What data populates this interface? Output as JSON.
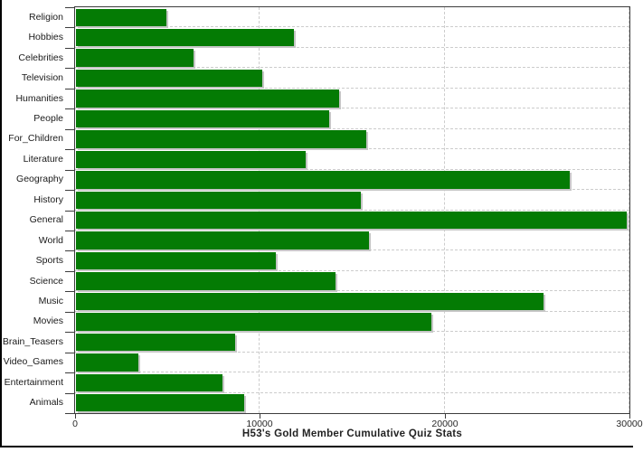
{
  "chart_data": {
    "type": "bar",
    "orientation": "horizontal",
    "title": "H53's Gold Member Cumulative Quiz Stats",
    "categories": [
      "Religion",
      "Hobbies",
      "Celebrities",
      "Television",
      "Humanities",
      "People",
      "For_Children",
      "Literature",
      "Geography",
      "History",
      "General",
      "World",
      "Sports",
      "Science",
      "Music",
      "Movies",
      "Brain_Teasers",
      "Video_Games",
      "Entertainment",
      "Animals"
    ],
    "values": [
      4900,
      11800,
      6350,
      10100,
      14250,
      13700,
      15700,
      12450,
      26700,
      15400,
      29800,
      15850,
      10800,
      14050,
      25300,
      19250,
      8600,
      3400,
      7950,
      9100
    ],
    "xlabel": "",
    "ylabel": "",
    "xlim": [
      0,
      30000
    ],
    "x_ticks": [
      0,
      10000,
      20000,
      30000
    ],
    "x_tick_labels": [
      "0",
      "10000",
      "20000",
      "30000"
    ],
    "grid": true,
    "legend": false,
    "colors": {
      "bar": "#047b04",
      "bar_shadow": "#c6c6c6",
      "gridline": "#cccccc",
      "axis": "#3c3c3c",
      "background": "#ffffff"
    }
  }
}
